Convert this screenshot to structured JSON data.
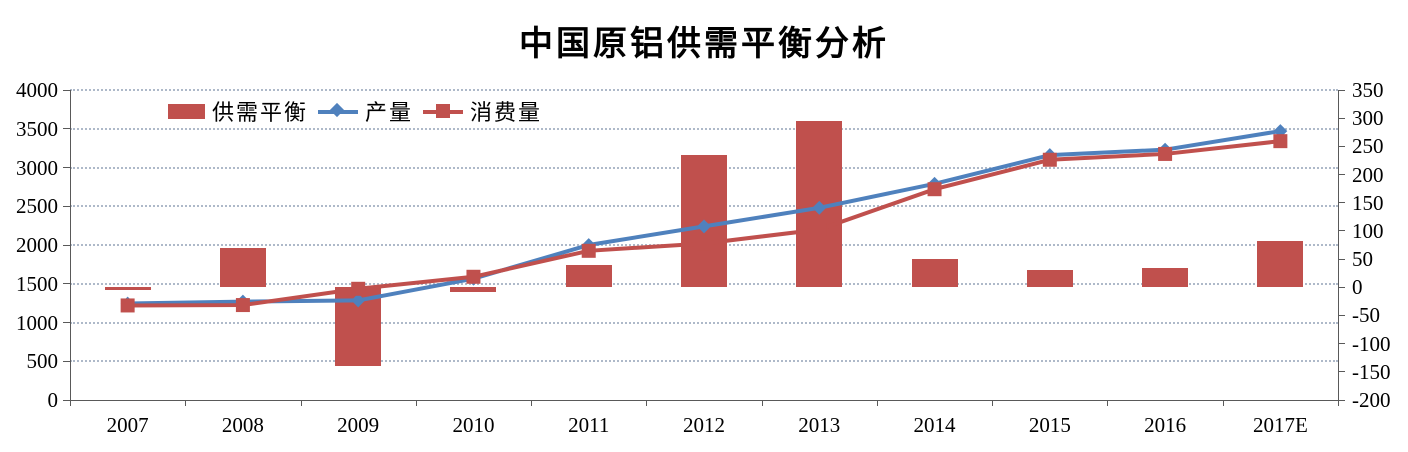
{
  "chart_data": {
    "type": "bar",
    "subtype": "combo-bar-line-dual-axis",
    "title": "中国原铝供需平衡分析",
    "categories": [
      "2007",
      "2008",
      "2009",
      "2010",
      "2011",
      "2012",
      "2013",
      "2014",
      "2015",
      "2016",
      "2017E"
    ],
    "series": [
      {
        "name": "供需平衡",
        "type": "bar",
        "axis": "right",
        "marker": "rect",
        "values": [
          -5,
          70,
          -140,
          -8,
          40,
          235,
          295,
          50,
          30,
          35,
          82
        ]
      },
      {
        "name": "产量",
        "type": "line",
        "axis": "left",
        "marker": "diamond",
        "values": [
          1245,
          1270,
          1285,
          1565,
          2000,
          2240,
          2480,
          2790,
          3160,
          3230,
          3470
        ]
      },
      {
        "name": "消费量",
        "type": "line",
        "axis": "left",
        "marker": "square",
        "values": [
          1220,
          1225,
          1435,
          1590,
          1925,
          2020,
          2200,
          2720,
          3100,
          3175,
          3340
        ]
      }
    ],
    "left_axis": {
      "min": 0,
      "max": 4000,
      "step": 500,
      "tick_labels": [
        "0",
        "500",
        "1000",
        "1500",
        "2000",
        "2500",
        "3000",
        "3500",
        "4000"
      ]
    },
    "right_axis": {
      "min": -200,
      "max": 350,
      "step": 50,
      "tick_labels": [
        "-200",
        "-150",
        "-100",
        "-50",
        "0",
        "50",
        "100",
        "150",
        "200",
        "250",
        "300",
        "350"
      ]
    },
    "grid": "horizontal-dotted",
    "legend_position": "top-inside-left",
    "colors": {
      "bar": "#C0504D",
      "production_line": "#4F81BD",
      "consumption_line": "#C0504D",
      "gridline": "#AEB9C9",
      "axis": "#595959",
      "text": "#000000",
      "background": "#FFFFFF"
    }
  }
}
